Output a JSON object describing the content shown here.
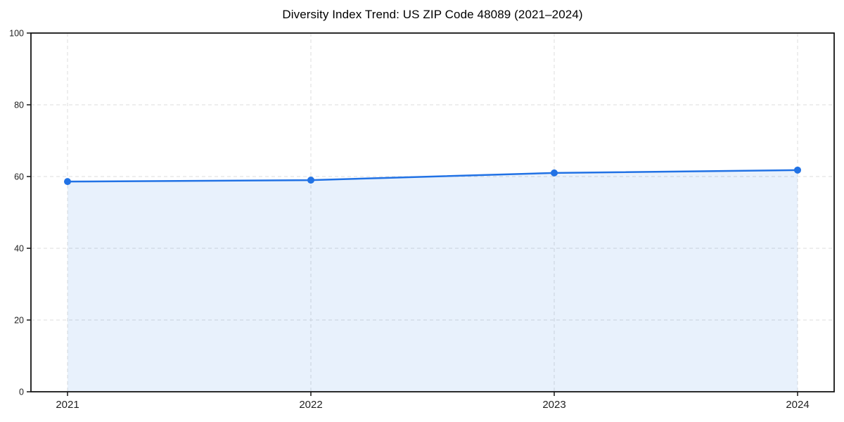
{
  "chart_data": {
    "type": "line",
    "title": "Diversity Index Trend: US ZIP Code 48089 (2021–2024)",
    "xlabel": "",
    "ylabel": "",
    "categories": [
      "2021",
      "2022",
      "2023",
      "2024"
    ],
    "series": [
      {
        "name": "Diversity Index",
        "values": [
          58.6,
          59.0,
          61.0,
          61.8
        ]
      }
    ],
    "ylim": [
      0,
      100
    ],
    "yticks": [
      0,
      20,
      40,
      60,
      80,
      100
    ],
    "grid": true,
    "grid_style": "dashed",
    "legend_position": "none",
    "area_fill": true,
    "marker": "circle",
    "colors": {
      "line": "#2172e5",
      "marker": "#2172e5",
      "area": "#2172e5",
      "area_opacity": 0.1,
      "grid": "#dcdcdc",
      "spine": "#141414",
      "tick_label": "#1f1f1f",
      "title": "#000000",
      "background": "#ffffff"
    }
  }
}
